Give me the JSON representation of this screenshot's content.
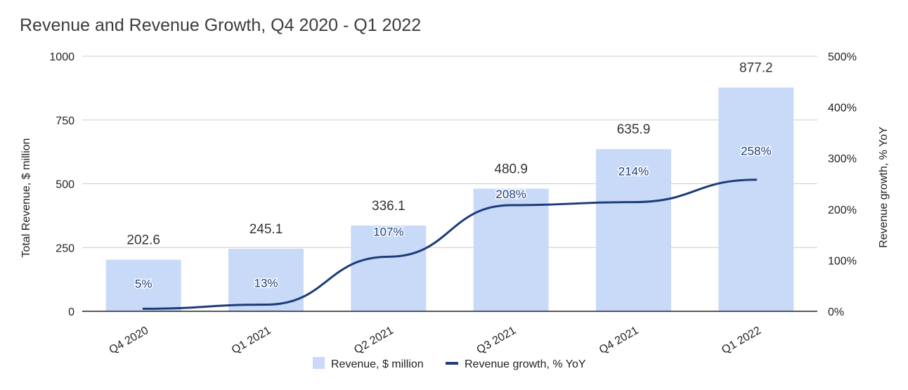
{
  "chart_data": {
    "type": "bar",
    "title": "Revenue and Revenue Growth, Q4 2020 - Q1 2022",
    "categories": [
      "Q4 2020",
      "Q1 2021",
      "Q2 2021",
      "Q3 2021",
      "Q4 2021",
      "Q1 2022"
    ],
    "series": [
      {
        "name": "Revenue, $ million",
        "type": "bar",
        "axis": "left",
        "color": "#c9daf8",
        "values": [
          202.6,
          245.1,
          336.1,
          480.9,
          635.9,
          877.2
        ],
        "labels": [
          "202.6",
          "245.1",
          "336.1",
          "480.9",
          "635.9",
          "877.2"
        ]
      },
      {
        "name": "Revenue growth, % YoY",
        "type": "line",
        "axis": "right",
        "color": "#1c3d78",
        "values": [
          5,
          13,
          107,
          208,
          214,
          258
        ],
        "labels": [
          "5%",
          "13%",
          "107%",
          "208%",
          "214%",
          "258%"
        ]
      }
    ],
    "ylabel": "Total Revenue, $ million",
    "ylim": [
      0,
      1000
    ],
    "yticks": [
      0,
      250,
      500,
      750,
      1000
    ],
    "ytick_labels": [
      "0",
      "250",
      "500",
      "750",
      "1000"
    ],
    "y2label": "Revenue growth, % YoY",
    "y2lim": [
      0,
      500
    ],
    "y2ticks": [
      0,
      100,
      200,
      300,
      400,
      500
    ],
    "y2tick_labels": [
      "0%",
      "100%",
      "200%",
      "300%",
      "400%",
      "500%"
    ],
    "grid": true,
    "legend_position": "bottom-center"
  }
}
